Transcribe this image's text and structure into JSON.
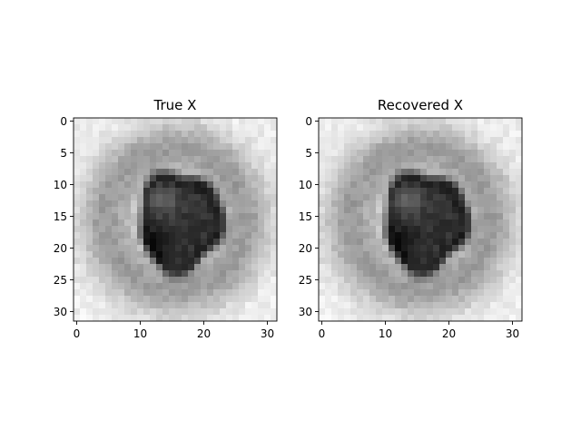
{
  "chart_data": [
    {
      "type": "heatmap",
      "title": "True X",
      "xlabel": "",
      "ylabel": "",
      "xlim": [
        -0.5,
        31.5
      ],
      "ylim": [
        31.5,
        -0.5
      ],
      "xticks": [
        0,
        10,
        20,
        30
      ],
      "yticks": [
        0,
        5,
        10,
        15,
        20,
        25,
        30
      ],
      "grid": false,
      "colormap": "gray_r"
    },
    {
      "type": "heatmap",
      "title": "Recovered X",
      "xlabel": "",
      "ylabel": "",
      "xlim": [
        -0.5,
        31.5
      ],
      "ylim": [
        31.5,
        -0.5
      ],
      "xticks": [
        0,
        10,
        20,
        30
      ],
      "yticks": [
        0,
        5,
        10,
        15,
        20,
        25,
        30
      ],
      "grid": false,
      "colormap": "gray_r"
    }
  ]
}
